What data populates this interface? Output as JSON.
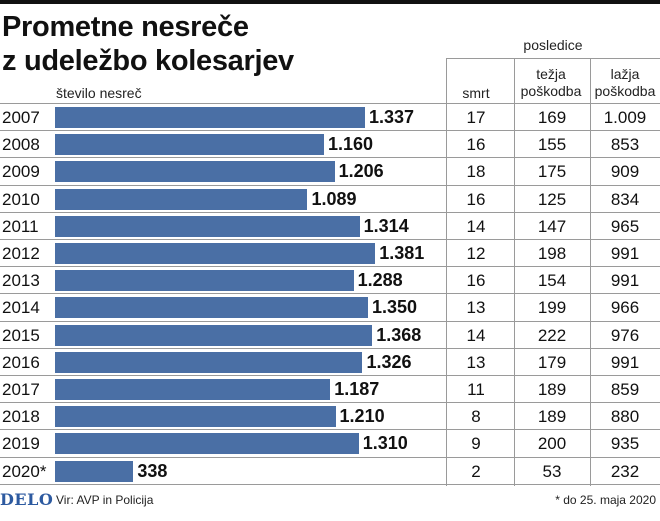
{
  "title_line1": "Prometne nesreče",
  "title_line2": "z udeležbo kolesarjev",
  "header": {
    "bar_label": "število nesreč",
    "consequences": "posledice",
    "col_death": "smrt",
    "col_severe_1": "težja",
    "col_severe_2": "poškodba",
    "col_light_1": "lažja",
    "col_light_2": "poškodba"
  },
  "colors": {
    "bar": "#4a6fa5",
    "logo": "#2d5aa0"
  },
  "chart_data": {
    "type": "bar",
    "title": "Prometne nesreče z udeležbo kolesarjev",
    "xlabel": "število nesreč",
    "ylabel": "",
    "orientation": "horizontal",
    "xlim": [
      0,
      1400
    ],
    "categories": [
      "2007",
      "2008",
      "2009",
      "2010",
      "2011",
      "2012",
      "2013",
      "2014",
      "2015",
      "2016",
      "2017",
      "2018",
      "2019",
      "2020*"
    ],
    "values": [
      1337,
      1160,
      1206,
      1089,
      1314,
      1381,
      1288,
      1350,
      1368,
      1326,
      1187,
      1210,
      1310,
      338
    ],
    "value_labels": [
      "1.337",
      "1.160",
      "1.206",
      "1.089",
      "1.314",
      "1.381",
      "1.288",
      "1.350",
      "1.368",
      "1.326",
      "1.187",
      "1.210",
      "1.310",
      "338"
    ],
    "table_columns": [
      "smrt",
      "težja poškodba",
      "lažja poškodba"
    ],
    "smrt": [
      "17",
      "16",
      "18",
      "16",
      "14",
      "12",
      "16",
      "13",
      "14",
      "13",
      "11",
      "8",
      "9",
      "2"
    ],
    "tezja": [
      "169",
      "155",
      "175",
      "125",
      "147",
      "198",
      "154",
      "199",
      "222",
      "179",
      "189",
      "189",
      "200",
      "53"
    ],
    "lazja": [
      "1.009",
      "853",
      "909",
      "834",
      "965",
      "991",
      "991",
      "966",
      "976",
      "991",
      "859",
      "880",
      "935",
      "232"
    ]
  },
  "footer": {
    "logo": "DELO",
    "source": "Vir: AVP in Policija",
    "note": "* do 25. maja 2020"
  }
}
